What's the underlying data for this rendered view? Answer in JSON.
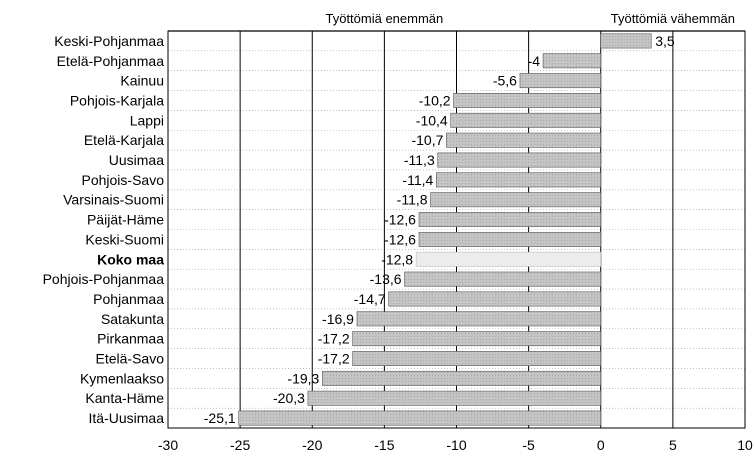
{
  "chart_data": {
    "type": "bar",
    "orientation": "horizontal",
    "categories": [
      "Keski-Pohjanmaa",
      "Etelä-Pohjanmaa",
      "Kainuu",
      "Pohjois-Karjala",
      "Lappi",
      "Etelä-Karjala",
      "Uusimaa",
      "Pohjois-Savo",
      "Varsinais-Suomi",
      "Päijät-Häme",
      "Keski-Suomi",
      "Koko maa",
      "Pohjois-Pohjanmaa",
      "Pohjanmaa",
      "Satakunta",
      "Pirkanmaa",
      "Etelä-Savo",
      "Kymenlaakso",
      "Kanta-Häme",
      "Itä-Uusimaa"
    ],
    "values": [
      3.5,
      -4,
      -5.6,
      -10.2,
      -10.4,
      -10.7,
      -11.3,
      -11.4,
      -11.8,
      -12.6,
      -12.6,
      -12.8,
      -13.6,
      -14.7,
      -16.9,
      -17.2,
      -17.2,
      -19.3,
      -20.3,
      -25.1
    ],
    "value_labels": [
      "3,5",
      "-4",
      "-5,6",
      "-10,2",
      "-10,4",
      "-10,7",
      "-11,3",
      "-11,4",
      "-11,8",
      "-12,6",
      "-12,6",
      "-12,8",
      "-13,6",
      "-14,7",
      "-16,9",
      "-17,2",
      "-17,2",
      "-19,3",
      "-20,3",
      "-25,1"
    ],
    "highlight_category": "Koko maa",
    "x_ticks": [
      -30,
      -25,
      -20,
      -15,
      -10,
      -5,
      0,
      5,
      10
    ],
    "x_tick_labels": [
      "-30",
      "-25",
      "-20",
      "-15",
      "-10",
      "-5",
      "0",
      "5",
      "10"
    ],
    "xlim": [
      -30,
      10
    ],
    "header_left": "Työttömiä enemmän",
    "header_right": "Työttömiä vähemmän",
    "title": "",
    "xlabel": "",
    "ylabel": "",
    "grid": "vertical major lines every 5, dotted row separators",
    "colors": {
      "bar_fill": "#c4c4c4",
      "highlight_fill": "#ececec",
      "line": "#000000",
      "grid": "#999999"
    }
  }
}
